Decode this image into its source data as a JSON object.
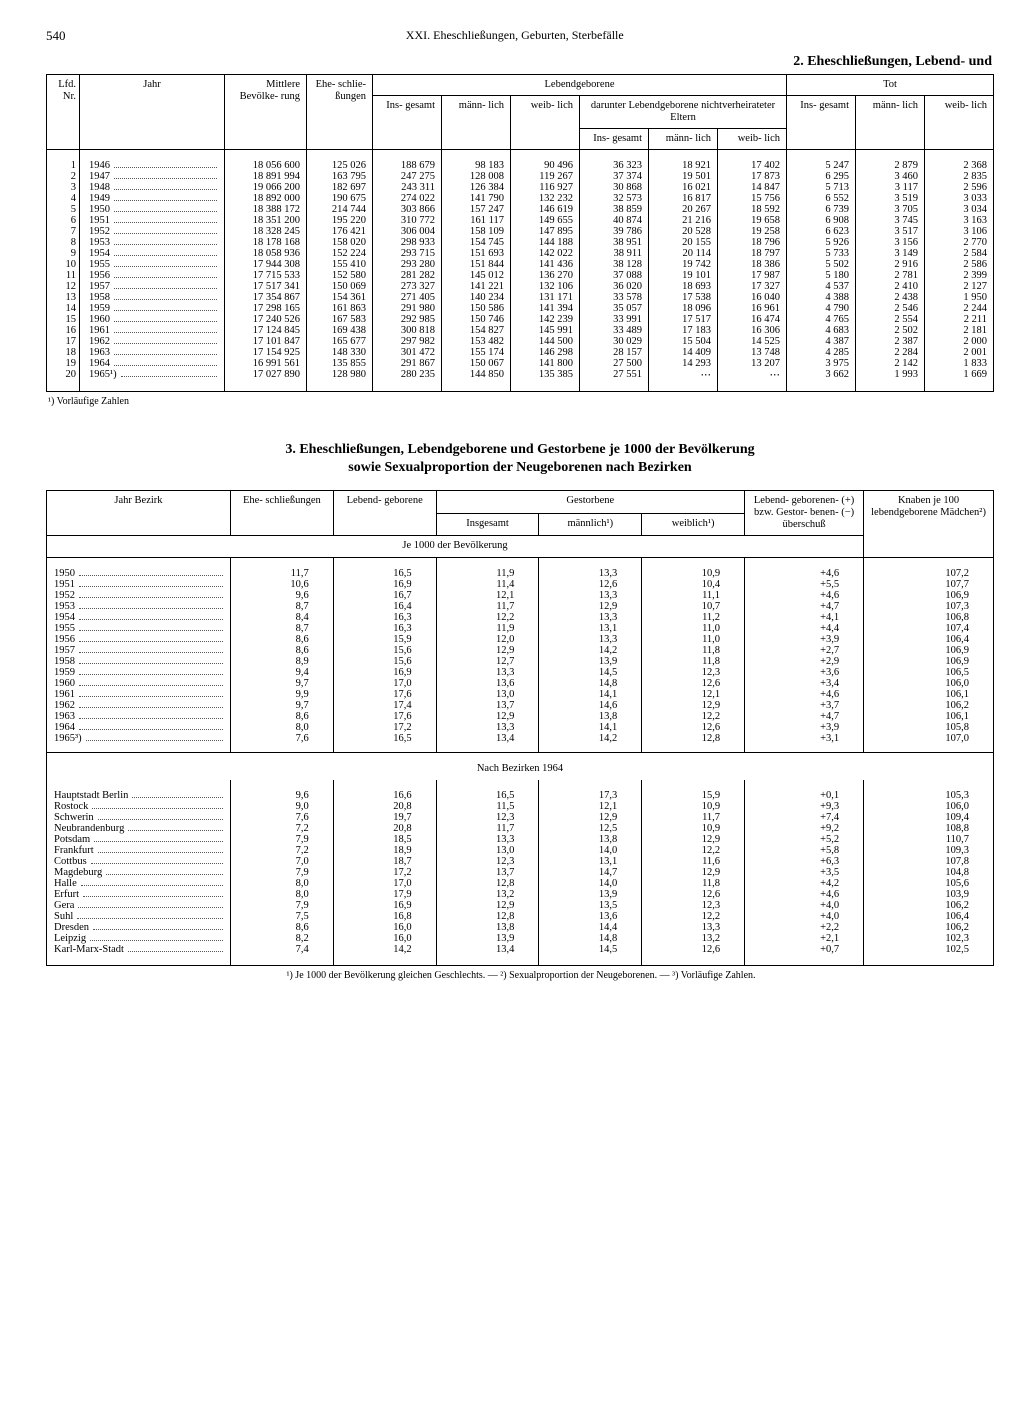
{
  "page_number": "540",
  "chapter_title": "XXI. Eheschließungen, Geburten, Sterbefälle",
  "section2_title": "2. Eheschließungen, Lebend- und",
  "section3_title_line1": "3. Eheschließungen, Lebendgeborene und Gestorbene je 1000 der Bevölkerung",
  "section3_title_line2": "sowie Sexualproportion der Neugeborenen nach Bezirken",
  "table1": {
    "headers": {
      "lfd": "Lfd.\nNr.",
      "jahr": "Jahr",
      "bevoelkerung": "Mittlere\nBevölke-\nrung",
      "ehe": "Ehe-\nschlie-\nßungen",
      "lebendgeborene": "Lebendgeborene",
      "tot": "Tot",
      "insgesamt": "Ins-\ngesamt",
      "maennlich": "männ-\nlich",
      "weiblich": "weib-\nlich",
      "darunter": "darunter Lebendgeborene\nnichtverheirateter Eltern"
    },
    "rows": [
      {
        "n": "1",
        "jahr": "1946",
        "bev": "18 056 600",
        "ehe": "125 026",
        "lg_i": "188 679",
        "lg_m": "98 183",
        "lg_w": "90 496",
        "dn_i": "36 323",
        "dn_m": "18 921",
        "dn_w": "17 402",
        "t_i": "5 247",
        "t_m": "2 879",
        "t_w": "2 368"
      },
      {
        "n": "2",
        "jahr": "1947",
        "bev": "18 891 994",
        "ehe": "163 795",
        "lg_i": "247 275",
        "lg_m": "128 008",
        "lg_w": "119 267",
        "dn_i": "37 374",
        "dn_m": "19 501",
        "dn_w": "17 873",
        "t_i": "6 295",
        "t_m": "3 460",
        "t_w": "2 835"
      },
      {
        "n": "3",
        "jahr": "1948",
        "bev": "19 066 200",
        "ehe": "182 697",
        "lg_i": "243 311",
        "lg_m": "126 384",
        "lg_w": "116 927",
        "dn_i": "30 868",
        "dn_m": "16 021",
        "dn_w": "14 847",
        "t_i": "5 713",
        "t_m": "3 117",
        "t_w": "2 596"
      },
      {
        "n": "4",
        "jahr": "1949",
        "bev": "18 892 000",
        "ehe": "190 675",
        "lg_i": "274 022",
        "lg_m": "141 790",
        "lg_w": "132 232",
        "dn_i": "32 573",
        "dn_m": "16 817",
        "dn_w": "15 756",
        "t_i": "6 552",
        "t_m": "3 519",
        "t_w": "3 033"
      },
      {
        "n": "5",
        "jahr": "1950",
        "bev": "18 388 172",
        "ehe": "214 744",
        "lg_i": "303 866",
        "lg_m": "157 247",
        "lg_w": "146 619",
        "dn_i": "38 859",
        "dn_m": "20 267",
        "dn_w": "18 592",
        "t_i": "6 739",
        "t_m": "3 705",
        "t_w": "3 034"
      },
      {
        "n": "6",
        "jahr": "1951",
        "bev": "18 351 200",
        "ehe": "195 220",
        "lg_i": "310 772",
        "lg_m": "161 117",
        "lg_w": "149 655",
        "dn_i": "40 874",
        "dn_m": "21 216",
        "dn_w": "19 658",
        "t_i": "6 908",
        "t_m": "3 745",
        "t_w": "3 163"
      },
      {
        "n": "7",
        "jahr": "1952",
        "bev": "18 328 245",
        "ehe": "176 421",
        "lg_i": "306 004",
        "lg_m": "158 109",
        "lg_w": "147 895",
        "dn_i": "39 786",
        "dn_m": "20 528",
        "dn_w": "19 258",
        "t_i": "6 623",
        "t_m": "3 517",
        "t_w": "3 106"
      },
      {
        "n": "8",
        "jahr": "1953",
        "bev": "18 178 168",
        "ehe": "158 020",
        "lg_i": "298 933",
        "lg_m": "154 745",
        "lg_w": "144 188",
        "dn_i": "38 951",
        "dn_m": "20 155",
        "dn_w": "18 796",
        "t_i": "5 926",
        "t_m": "3 156",
        "t_w": "2 770"
      },
      {
        "n": "9",
        "jahr": "1954",
        "bev": "18 058 936",
        "ehe": "152 224",
        "lg_i": "293 715",
        "lg_m": "151 693",
        "lg_w": "142 022",
        "dn_i": "38 911",
        "dn_m": "20 114",
        "dn_w": "18 797",
        "t_i": "5 733",
        "t_m": "3 149",
        "t_w": "2 584"
      },
      {
        "n": "10",
        "jahr": "1955",
        "bev": "17 944 308",
        "ehe": "155 410",
        "lg_i": "293 280",
        "lg_m": "151 844",
        "lg_w": "141 436",
        "dn_i": "38 128",
        "dn_m": "19 742",
        "dn_w": "18 386",
        "t_i": "5 502",
        "t_m": "2 916",
        "t_w": "2 586"
      },
      {
        "n": "11",
        "jahr": "1956",
        "bev": "17 715 533",
        "ehe": "152 580",
        "lg_i": "281 282",
        "lg_m": "145 012",
        "lg_w": "136 270",
        "dn_i": "37 088",
        "dn_m": "19 101",
        "dn_w": "17 987",
        "t_i": "5 180",
        "t_m": "2 781",
        "t_w": "2 399"
      },
      {
        "n": "12",
        "jahr": "1957",
        "bev": "17 517 341",
        "ehe": "150 069",
        "lg_i": "273 327",
        "lg_m": "141 221",
        "lg_w": "132 106",
        "dn_i": "36 020",
        "dn_m": "18 693",
        "dn_w": "17 327",
        "t_i": "4 537",
        "t_m": "2 410",
        "t_w": "2 127"
      },
      {
        "n": "13",
        "jahr": "1958",
        "bev": "17 354 867",
        "ehe": "154 361",
        "lg_i": "271 405",
        "lg_m": "140 234",
        "lg_w": "131 171",
        "dn_i": "33 578",
        "dn_m": "17 538",
        "dn_w": "16 040",
        "t_i": "4 388",
        "t_m": "2 438",
        "t_w": "1 950"
      },
      {
        "n": "14",
        "jahr": "1959",
        "bev": "17 298 165",
        "ehe": "161 863",
        "lg_i": "291 980",
        "lg_m": "150 586",
        "lg_w": "141 394",
        "dn_i": "35 057",
        "dn_m": "18 096",
        "dn_w": "16 961",
        "t_i": "4 790",
        "t_m": "2 546",
        "t_w": "2 244"
      },
      {
        "n": "15",
        "jahr": "1960",
        "bev": "17 240 526",
        "ehe": "167 583",
        "lg_i": "292 985",
        "lg_m": "150 746",
        "lg_w": "142 239",
        "dn_i": "33 991",
        "dn_m": "17 517",
        "dn_w": "16 474",
        "t_i": "4 765",
        "t_m": "2 554",
        "t_w": "2 211"
      },
      {
        "n": "16",
        "jahr": "1961",
        "bev": "17 124 845",
        "ehe": "169 438",
        "lg_i": "300 818",
        "lg_m": "154 827",
        "lg_w": "145 991",
        "dn_i": "33 489",
        "dn_m": "17 183",
        "dn_w": "16 306",
        "t_i": "4 683",
        "t_m": "2 502",
        "t_w": "2 181"
      },
      {
        "n": "17",
        "jahr": "1962",
        "bev": "17 101 847",
        "ehe": "165 677",
        "lg_i": "297 982",
        "lg_m": "153 482",
        "lg_w": "144 500",
        "dn_i": "30 029",
        "dn_m": "15 504",
        "dn_w": "14 525",
        "t_i": "4 387",
        "t_m": "2 387",
        "t_w": "2 000"
      },
      {
        "n": "18",
        "jahr": "1963",
        "bev": "17 154 925",
        "ehe": "148 330",
        "lg_i": "301 472",
        "lg_m": "155 174",
        "lg_w": "146 298",
        "dn_i": "28 157",
        "dn_m": "14 409",
        "dn_w": "13 748",
        "t_i": "4 285",
        "t_m": "2 284",
        "t_w": "2 001"
      },
      {
        "n": "19",
        "jahr": "1964",
        "bev": "16 991 561",
        "ehe": "135 855",
        "lg_i": "291 867",
        "lg_m": "150 067",
        "lg_w": "141 800",
        "dn_i": "27 500",
        "dn_m": "14 293",
        "dn_w": "13 207",
        "t_i": "3 975",
        "t_m": "2 142",
        "t_w": "1 833"
      },
      {
        "n": "20",
        "jahr": "1965¹)",
        "bev": "17 027 890",
        "ehe": "128 980",
        "lg_i": "280 235",
        "lg_m": "144 850",
        "lg_w": "135 385",
        "dn_i": "27 551",
        "dn_m": "⋯",
        "dn_w": "⋯",
        "t_i": "3 662",
        "t_m": "1 993",
        "t_w": "1 669"
      }
    ],
    "footnote": "¹) Vorläufige Zahlen"
  },
  "table2": {
    "headers": {
      "jahr_bezirk": "Jahr\nBezirk",
      "ehe": "Ehe-\nschließungen",
      "lebend": "Lebend-\ngeborene",
      "gestorbene": "Gestorbene",
      "insgesamt": "Insgesamt",
      "maennlich": "männlich¹)",
      "weiblich": "weiblich¹)",
      "ueberschuss": "Lebend-\ngeborenen- (+)\nbzw. Gestor-\nbenen- (−)\nüberschuß",
      "knaben": "Knaben je 100\nlebendgeborene\nMädchen²)",
      "je1000": "Je 1000 der Bevölkerung",
      "bezirke1964": "Nach Bezirken 1964"
    },
    "years": [
      {
        "label": "1950",
        "ehe": "11,7",
        "lg": "16,5",
        "g_i": "11,9",
        "g_m": "13,3",
        "g_w": "10,9",
        "us": "+4,6",
        "kn": "107,2"
      },
      {
        "label": "1951",
        "ehe": "10,6",
        "lg": "16,9",
        "g_i": "11,4",
        "g_m": "12,6",
        "g_w": "10,4",
        "us": "+5,5",
        "kn": "107,7"
      },
      {
        "label": "1952",
        "ehe": "9,6",
        "lg": "16,7",
        "g_i": "12,1",
        "g_m": "13,3",
        "g_w": "11,1",
        "us": "+4,6",
        "kn": "106,9"
      },
      {
        "label": "1953",
        "ehe": "8,7",
        "lg": "16,4",
        "g_i": "11,7",
        "g_m": "12,9",
        "g_w": "10,7",
        "us": "+4,7",
        "kn": "107,3"
      },
      {
        "label": "1954",
        "ehe": "8,4",
        "lg": "16,3",
        "g_i": "12,2",
        "g_m": "13,3",
        "g_w": "11,2",
        "us": "+4,1",
        "kn": "106,8"
      },
      {
        "label": "1955",
        "ehe": "8,7",
        "lg": "16,3",
        "g_i": "11,9",
        "g_m": "13,1",
        "g_w": "11,0",
        "us": "+4,4",
        "kn": "107,4"
      },
      {
        "label": "1956",
        "ehe": "8,6",
        "lg": "15,9",
        "g_i": "12,0",
        "g_m": "13,3",
        "g_w": "11,0",
        "us": "+3,9",
        "kn": "106,4"
      },
      {
        "label": "1957",
        "ehe": "8,6",
        "lg": "15,6",
        "g_i": "12,9",
        "g_m": "14,2",
        "g_w": "11,8",
        "us": "+2,7",
        "kn": "106,9"
      },
      {
        "label": "1958",
        "ehe": "8,9",
        "lg": "15,6",
        "g_i": "12,7",
        "g_m": "13,9",
        "g_w": "11,8",
        "us": "+2,9",
        "kn": "106,9"
      },
      {
        "label": "1959",
        "ehe": "9,4",
        "lg": "16,9",
        "g_i": "13,3",
        "g_m": "14,5",
        "g_w": "12,3",
        "us": "+3,6",
        "kn": "106,5"
      },
      {
        "label": "1960",
        "ehe": "9,7",
        "lg": "17,0",
        "g_i": "13,6",
        "g_m": "14,8",
        "g_w": "12,6",
        "us": "+3,4",
        "kn": "106,0"
      },
      {
        "label": "1961",
        "ehe": "9,9",
        "lg": "17,6",
        "g_i": "13,0",
        "g_m": "14,1",
        "g_w": "12,1",
        "us": "+4,6",
        "kn": "106,1"
      },
      {
        "label": "1962",
        "ehe": "9,7",
        "lg": "17,4",
        "g_i": "13,7",
        "g_m": "14,6",
        "g_w": "12,9",
        "us": "+3,7",
        "kn": "106,2"
      },
      {
        "label": "1963",
        "ehe": "8,6",
        "lg": "17,6",
        "g_i": "12,9",
        "g_m": "13,8",
        "g_w": "12,2",
        "us": "+4,7",
        "kn": "106,1"
      },
      {
        "label": "1964",
        "ehe": "8,0",
        "lg": "17,2",
        "g_i": "13,3",
        "g_m": "14,1",
        "g_w": "12,6",
        "us": "+3,9",
        "kn": "105,8"
      },
      {
        "label": "1965³)",
        "ehe": "7,6",
        "lg": "16,5",
        "g_i": "13,4",
        "g_m": "14,2",
        "g_w": "12,8",
        "us": "+3,1",
        "kn": "107,0"
      }
    ],
    "bezirke": [
      {
        "label": "Hauptstadt Berlin",
        "ehe": "9,6",
        "lg": "16,6",
        "g_i": "16,5",
        "g_m": "17,3",
        "g_w": "15,9",
        "us": "+0,1",
        "kn": "105,3"
      },
      {
        "label": "Rostock",
        "ehe": "9,0",
        "lg": "20,8",
        "g_i": "11,5",
        "g_m": "12,1",
        "g_w": "10,9",
        "us": "+9,3",
        "kn": "106,0"
      },
      {
        "label": "Schwerin",
        "ehe": "7,6",
        "lg": "19,7",
        "g_i": "12,3",
        "g_m": "12,9",
        "g_w": "11,7",
        "us": "+7,4",
        "kn": "109,4"
      },
      {
        "label": "Neubrandenburg",
        "ehe": "7,2",
        "lg": "20,8",
        "g_i": "11,7",
        "g_m": "12,5",
        "g_w": "10,9",
        "us": "+9,2",
        "kn": "108,8"
      },
      {
        "label": "Potsdam",
        "ehe": "7,9",
        "lg": "18,5",
        "g_i": "13,3",
        "g_m": "13,8",
        "g_w": "12,9",
        "us": "+5,2",
        "kn": "110,7"
      },
      {
        "label": "Frankfurt",
        "ehe": "7,2",
        "lg": "18,9",
        "g_i": "13,0",
        "g_m": "14,0",
        "g_w": "12,2",
        "us": "+5,8",
        "kn": "109,3"
      },
      {
        "label": "Cottbus",
        "ehe": "7,0",
        "lg": "18,7",
        "g_i": "12,3",
        "g_m": "13,1",
        "g_w": "11,6",
        "us": "+6,3",
        "kn": "107,8"
      },
      {
        "label": "Magdeburg",
        "ehe": "7,9",
        "lg": "17,2",
        "g_i": "13,7",
        "g_m": "14,7",
        "g_w": "12,9",
        "us": "+3,5",
        "kn": "104,8"
      },
      {
        "label": "Halle",
        "ehe": "8,0",
        "lg": "17,0",
        "g_i": "12,8",
        "g_m": "14,0",
        "g_w": "11,8",
        "us": "+4,2",
        "kn": "105,6"
      },
      {
        "label": "Erfurt",
        "ehe": "8,0",
        "lg": "17,9",
        "g_i": "13,2",
        "g_m": "13,9",
        "g_w": "12,6",
        "us": "+4,6",
        "kn": "103,9"
      },
      {
        "label": "Gera",
        "ehe": "7,9",
        "lg": "16,9",
        "g_i": "12,9",
        "g_m": "13,5",
        "g_w": "12,3",
        "us": "+4,0",
        "kn": "106,2"
      },
      {
        "label": "Suhl",
        "ehe": "7,5",
        "lg": "16,8",
        "g_i": "12,8",
        "g_m": "13,6",
        "g_w": "12,2",
        "us": "+4,0",
        "kn": "106,4"
      },
      {
        "label": "Dresden",
        "ehe": "8,6",
        "lg": "16,0",
        "g_i": "13,8",
        "g_m": "14,4",
        "g_w": "13,3",
        "us": "+2,2",
        "kn": "106,2"
      },
      {
        "label": "Leipzig",
        "ehe": "8,2",
        "lg": "16,0",
        "g_i": "13,9",
        "g_m": "14,8",
        "g_w": "13,2",
        "us": "+2,1",
        "kn": "102,3"
      },
      {
        "label": "Karl-Marx-Stadt",
        "ehe": "7,4",
        "lg": "14,2",
        "g_i": "13,4",
        "g_m": "14,5",
        "g_w": "12,6",
        "us": "+0,7",
        "kn": "102,5"
      }
    ],
    "footnote": "¹) Je 1000 der Bevölkerung gleichen Geschlechts. — ²) Sexualproportion der Neugeborenen. — ³) Vorläufige Zahlen."
  }
}
